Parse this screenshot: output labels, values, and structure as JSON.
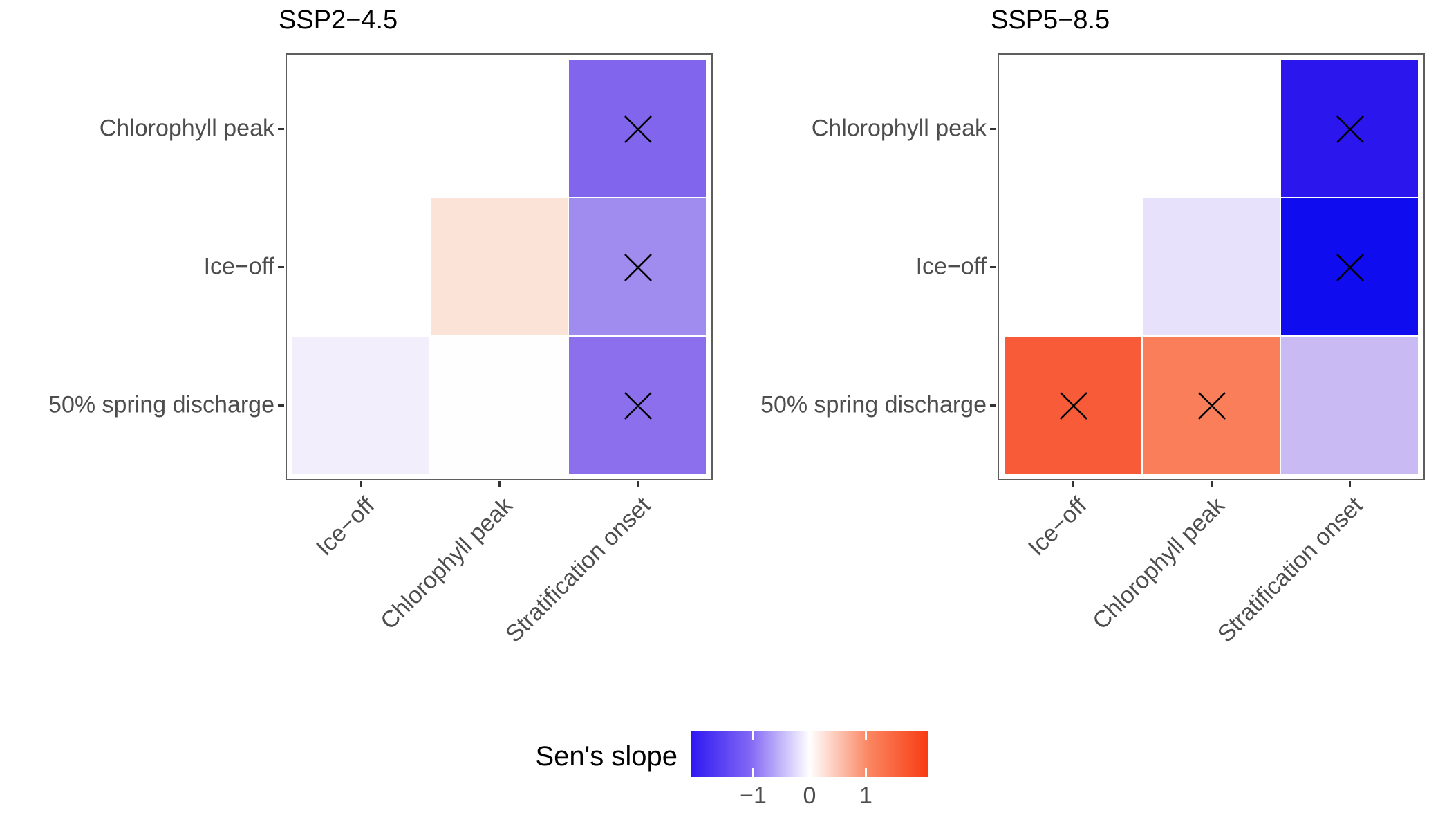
{
  "figure": {
    "background": "#ffffff",
    "axis_text_color": "#4d4d4d",
    "panel_border_color": "#5e5e5e"
  },
  "legend": {
    "title": "Sen's slope",
    "tick_labels": [
      "−1",
      "0",
      "1"
    ],
    "tick_values": [
      -1,
      0,
      1
    ],
    "range": [
      -2.1,
      2.1
    ],
    "gradient_stops": [
      "#2f18f2",
      "#8268f4",
      "#ffffff",
      "#fa8662",
      "#f83c12"
    ],
    "position": "bottom"
  },
  "chart_data": [
    {
      "type": "heatmap",
      "title": "SSP2−4.5",
      "x_categories": [
        "Ice−off",
        "Chlorophyll peak",
        "Stratification onset"
      ],
      "y_categories": [
        "Chlorophyll peak",
        "Ice−off",
        "50% spring discharge"
      ],
      "legend_label": "Sen's slope",
      "significance_marker": "x",
      "cells": [
        {
          "row": "Chlorophyll peak",
          "col": "Stratification onset",
          "value": -1.15,
          "color": "#8165ec",
          "significant": true
        },
        {
          "row": "Ice−off",
          "col": "Chlorophyll peak",
          "value": 0.3,
          "color": "#fce3d8",
          "significant": false
        },
        {
          "row": "Ice−off",
          "col": "Stratification onset",
          "value": -0.95,
          "color": "#a08bef",
          "significant": true
        },
        {
          "row": "50% spring discharge",
          "col": "Ice−off",
          "value": -0.12,
          "color": "#f2eefc",
          "significant": false
        },
        {
          "row": "50% spring discharge",
          "col": "Chlorophyll peak",
          "value": 0.02,
          "color": "#fffefe",
          "significant": false
        },
        {
          "row": "50% spring discharge",
          "col": "Stratification onset",
          "value": -1.05,
          "color": "#8b6fed",
          "significant": true
        }
      ]
    },
    {
      "type": "heatmap",
      "title": "SSP5−8.5",
      "x_categories": [
        "Ice−off",
        "Chlorophyll peak",
        "Stratification onset"
      ],
      "y_categories": [
        "Chlorophyll peak",
        "Ice−off",
        "50% spring discharge"
      ],
      "legend_label": "Sen's slope",
      "significance_marker": "x",
      "cells": [
        {
          "row": "Chlorophyll peak",
          "col": "Stratification onset",
          "value": -1.8,
          "color": "#2b17ee",
          "significant": true
        },
        {
          "row": "Ice−off",
          "col": "Chlorophyll peak",
          "value": -0.2,
          "color": "#e7e1fb",
          "significant": false
        },
        {
          "row": "Ice−off",
          "col": "Stratification onset",
          "value": -2.0,
          "color": "#0f0cf0",
          "significant": true
        },
        {
          "row": "50% spring discharge",
          "col": "Ice−off",
          "value": 1.35,
          "color": "#f75b38",
          "significant": true
        },
        {
          "row": "50% spring discharge",
          "col": "Chlorophyll peak",
          "value": 1.1,
          "color": "#f97e59",
          "significant": true
        },
        {
          "row": "50% spring discharge",
          "col": "Stratification onset",
          "value": -0.55,
          "color": "#c9baf4",
          "significant": false
        }
      ]
    }
  ]
}
